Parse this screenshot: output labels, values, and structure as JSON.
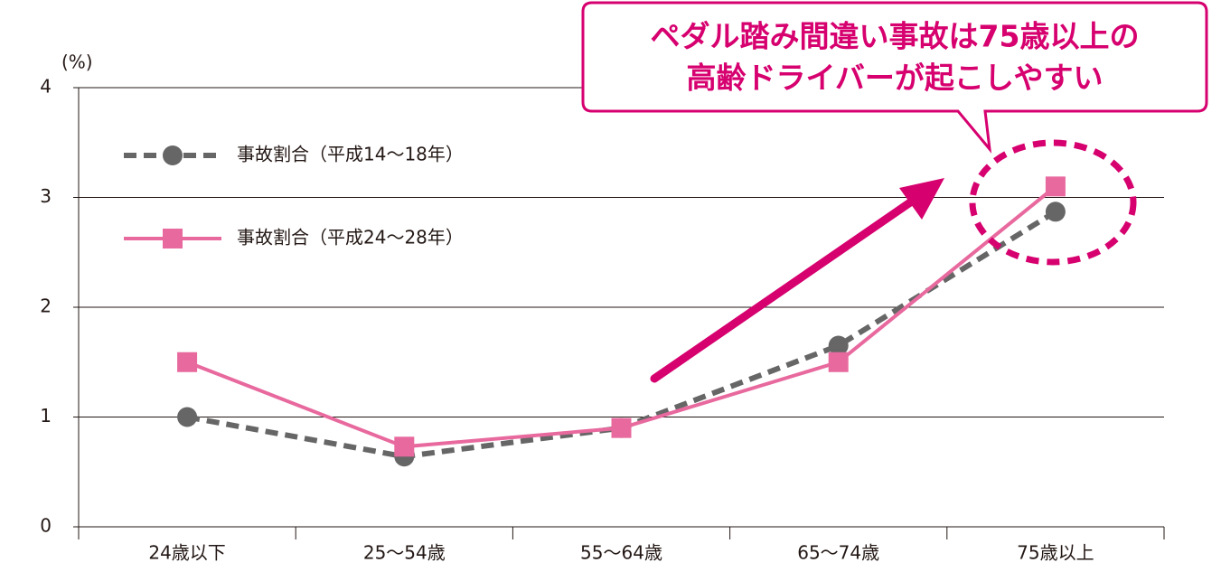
{
  "chart_data": {
    "type": "line",
    "y_unit": "(%)",
    "annotation": [
      "ペダル踏み間違い事故は75歳以上の",
      "高齢ドライバーが起こしやすい"
    ],
    "categories": [
      "24歳以下",
      "25～54歳",
      "55～64歳",
      "65～74歳",
      "75歳以上"
    ],
    "series": [
      {
        "name": "事故割合（平成14～18年）",
        "color": "#666666",
        "marker": "circle",
        "dashed": true,
        "values": [
          1.0,
          0.64,
          0.9,
          1.65,
          2.87
        ]
      },
      {
        "name": "事故割合（平成24～28年）",
        "color": "#e8699e",
        "marker": "square",
        "dashed": false,
        "values": [
          1.5,
          0.73,
          0.9,
          1.5,
          3.1
        ]
      }
    ],
    "ylim": [
      0,
      4
    ],
    "yticks": [
      0,
      1,
      2,
      3,
      4
    ],
    "grid": true,
    "legend": "upper left"
  }
}
